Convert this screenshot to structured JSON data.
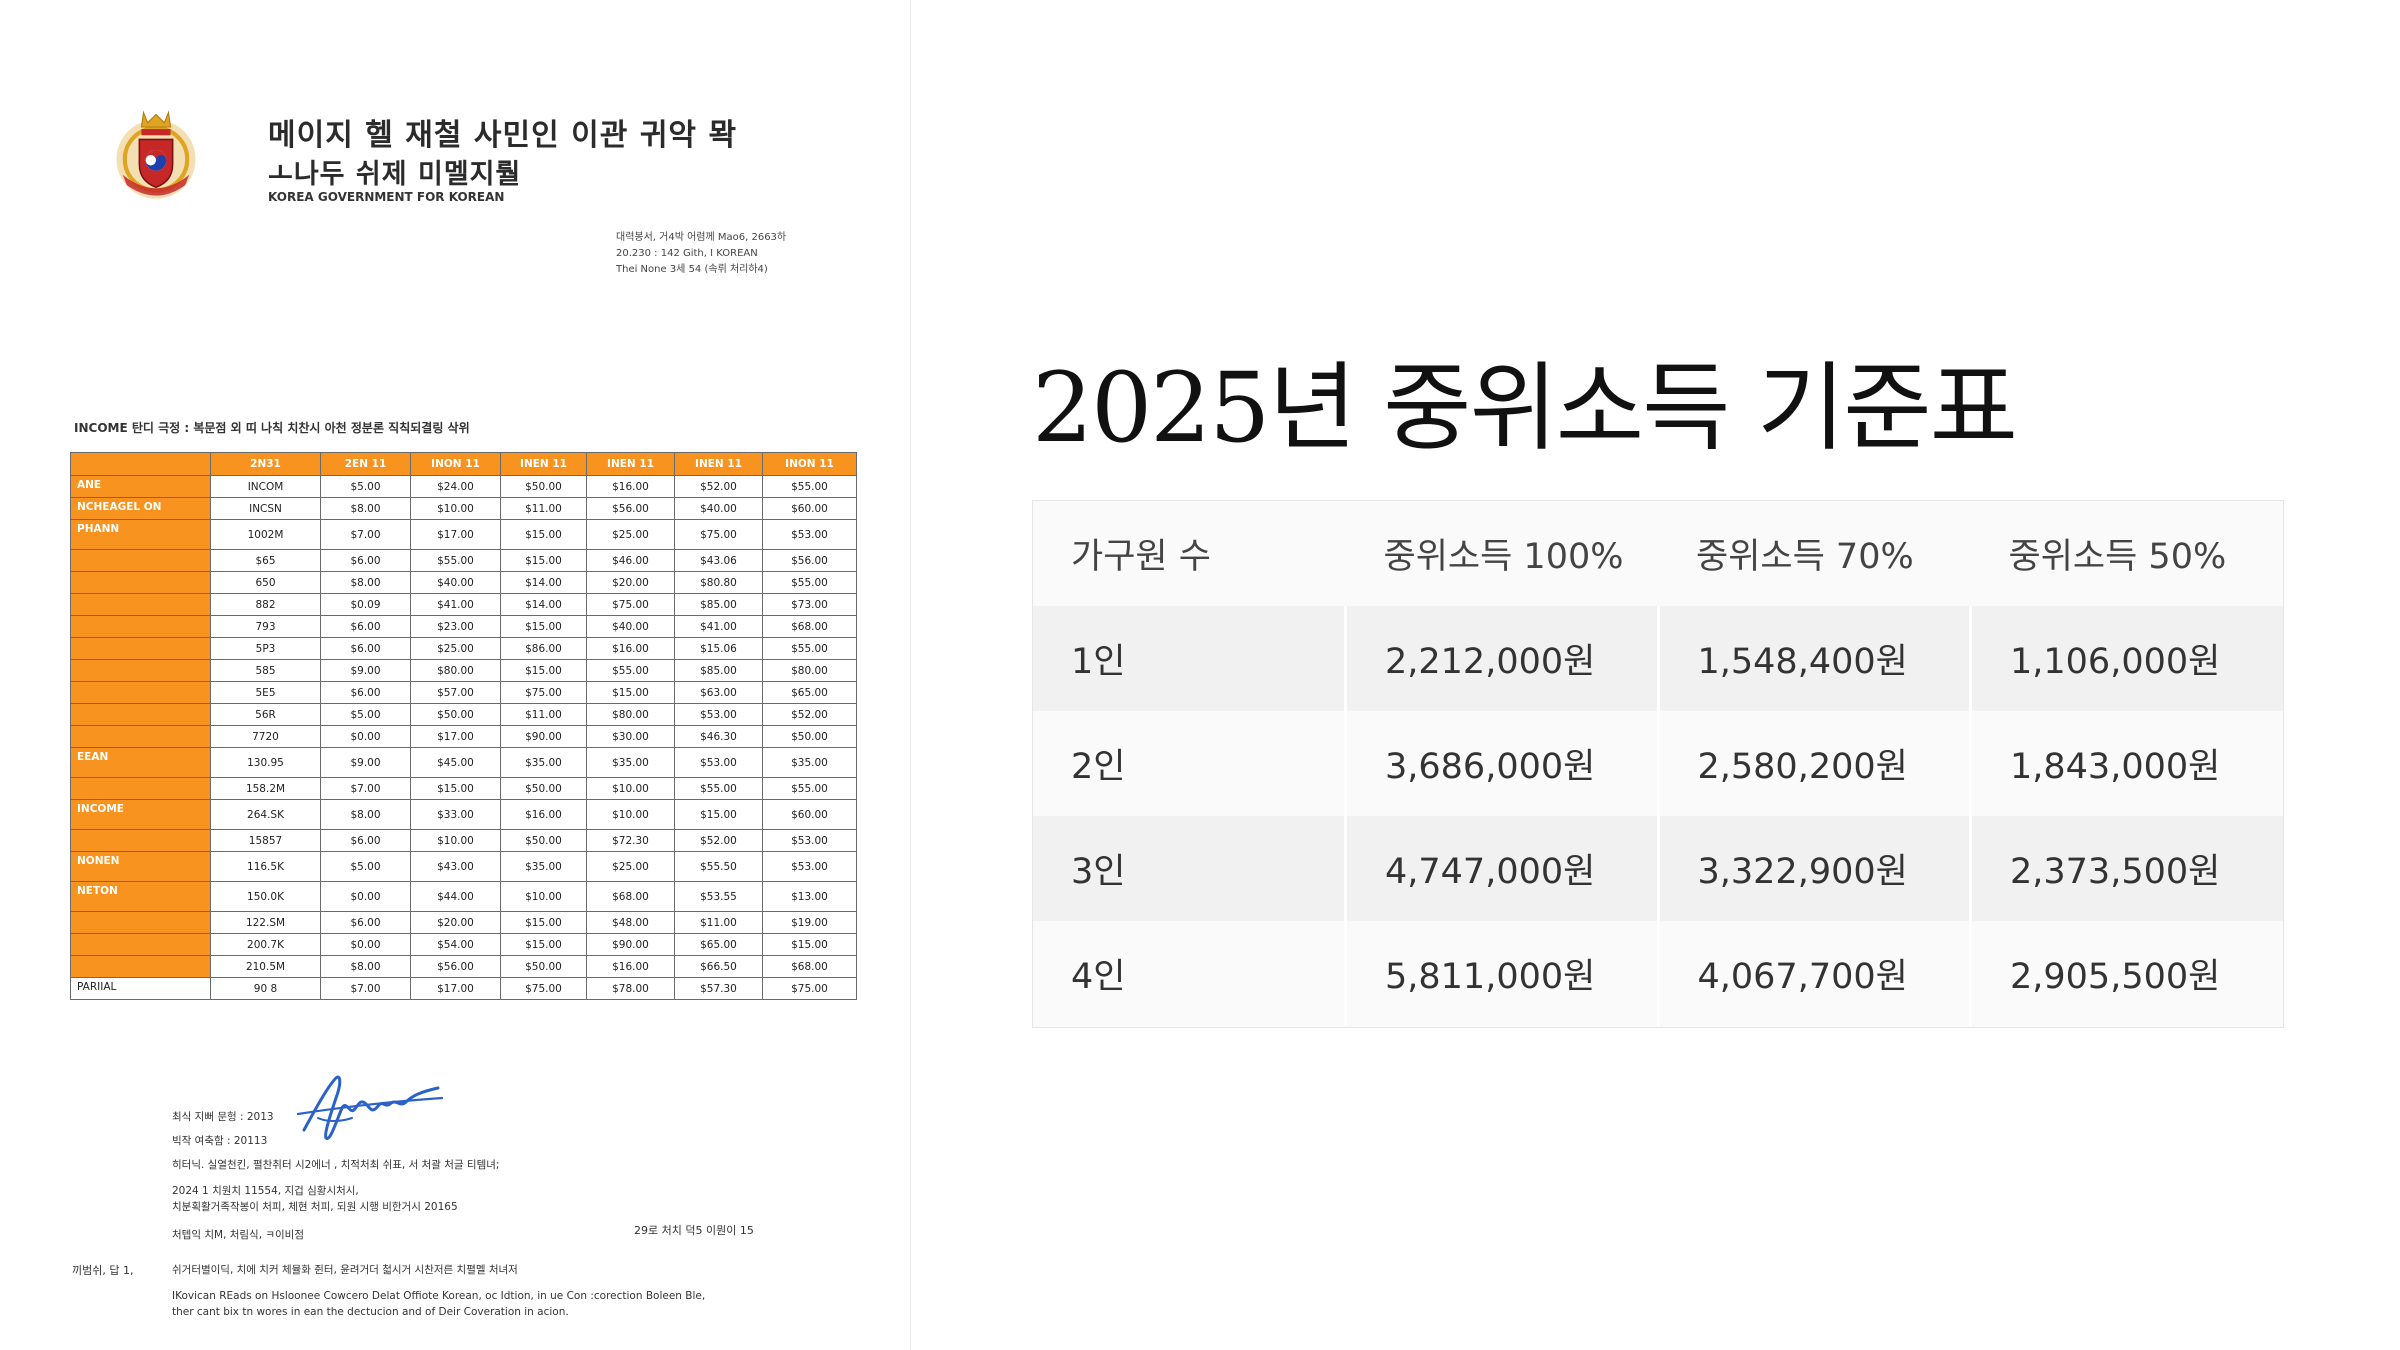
{
  "document": {
    "org_name_line1": "메이지 헬 재철 사민인 이관 귀악 뫅",
    "org_name_line2": "ㅗ나두 쉬제 미멜지뤌",
    "org_name_en": "KOREA GOVERNMENT FOR KOREAN",
    "address_lines": [
      "대력봉서, 거4박 어렴께 Mao6, 2663하",
      "20.230 : 142 Gith, I KOREAN",
      "Thei None 3세 54 (속뤼 처리하4)"
    ],
    "table_heading": "INCOME 탄디 극정 : 복문점 외 띠 나칙 치찬시 아천 정분론 직칙되결링 삭위",
    "table": {
      "headers": [
        "",
        "2N31",
        "2EN 11",
        "INON 11",
        "INEN 11",
        "INEN 11",
        "INEN 11",
        "INON 11"
      ],
      "rows": [
        {
          "label": "ANE",
          "code": "INCOM",
          "values": [
            "$5.00",
            "$24.00",
            "$50.00",
            "$16.00",
            "$52.00",
            "$55.00"
          ]
        },
        {
          "label": "NCHEAGEL ON",
          "code": "INCSN",
          "values": [
            "$8.00",
            "$10.00",
            "$11.00",
            "$56.00",
            "$40.00",
            "$60.00"
          ]
        },
        {
          "label": "PHANN",
          "code": "1002M",
          "values": [
            "$7.00",
            "$17.00",
            "$15.00",
            "$25.00",
            "$75.00",
            "$53.00"
          ]
        },
        {
          "label": "",
          "code": "$65",
          "values": [
            "$6.00",
            "$55.00",
            "$15.00",
            "$46.00",
            "$43.06",
            "$56.00"
          ]
        },
        {
          "label": "",
          "code": "650",
          "values": [
            "$8.00",
            "$40.00",
            "$14.00",
            "$20.00",
            "$80.80",
            "$55.00"
          ]
        },
        {
          "label": "",
          "code": "882",
          "values": [
            "$0.09",
            "$41.00",
            "$14.00",
            "$75.00",
            "$85.00",
            "$73.00"
          ]
        },
        {
          "label": "",
          "code": "793",
          "values": [
            "$6.00",
            "$23.00",
            "$15.00",
            "$40.00",
            "$41.00",
            "$68.00"
          ]
        },
        {
          "label": "",
          "code": "5P3",
          "values": [
            "$6.00",
            "$25.00",
            "$86.00",
            "$16.00",
            "$15.06",
            "$55.00"
          ]
        },
        {
          "label": "",
          "code": "585",
          "values": [
            "$9.00",
            "$80.00",
            "$15.00",
            "$55.00",
            "$85.00",
            "$80.00"
          ]
        },
        {
          "label": "",
          "code": "5E5",
          "values": [
            "$6.00",
            "$57.00",
            "$75.00",
            "$15.00",
            "$63.00",
            "$65.00"
          ]
        },
        {
          "label": "",
          "code": "56R",
          "values": [
            "$5.00",
            "$50.00",
            "$11.00",
            "$80.00",
            "$53.00",
            "$52.00"
          ]
        },
        {
          "label": "",
          "code": "7720",
          "values": [
            "$0.00",
            "$17.00",
            "$90.00",
            "$30.00",
            "$46.30",
            "$50.00"
          ]
        },
        {
          "label": "EEAN",
          "code": "130.95",
          "values": [
            "$9.00",
            "$45.00",
            "$35.00",
            "$35.00",
            "$53.00",
            "$35.00"
          ]
        },
        {
          "label": "",
          "code": "158.2M",
          "values": [
            "$7.00",
            "$15.00",
            "$50.00",
            "$10.00",
            "$55.00",
            "$55.00"
          ]
        },
        {
          "label": "INCOME",
          "code": "264.SK",
          "values": [
            "$8.00",
            "$33.00",
            "$16.00",
            "$10.00",
            "$15.00",
            "$60.00"
          ]
        },
        {
          "label": "",
          "code": "15857",
          "values": [
            "$6.00",
            "$10.00",
            "$50.00",
            "$72.30",
            "$52.00",
            "$53.00"
          ]
        },
        {
          "label": "NONEN",
          "code": "116.5K",
          "values": [
            "$5.00",
            "$43.00",
            "$35.00",
            "$25.00",
            "$55.50",
            "$53.00"
          ]
        },
        {
          "label": "NETON",
          "code": "150.0K",
          "values": [
            "$0.00",
            "$44.00",
            "$10.00",
            "$68.00",
            "$53.55",
            "$13.00"
          ]
        },
        {
          "label": "",
          "code": "122.SM",
          "values": [
            "$6.00",
            "$20.00",
            "$15.00",
            "$48.00",
            "$11.00",
            "$19.00"
          ]
        },
        {
          "label": "",
          "code": "200.7K",
          "values": [
            "$0.00",
            "$54.00",
            "$15.00",
            "$90.00",
            "$65.00",
            "$15.00"
          ]
        },
        {
          "label": "",
          "code": "210.5M",
          "values": [
            "$8.00",
            "$56.00",
            "$50.00",
            "$16.00",
            "$66.50",
            "$68.00"
          ]
        },
        {
          "label": "PARIIAL",
          "code": "90 8",
          "values": [
            "$7.00",
            "$17.00",
            "$75.00",
            "$78.00",
            "$57.30",
            "$75.00"
          ]
        }
      ]
    },
    "signature_lines": [
      "최식 지뻐 문헝 : 2013",
      "빅작 여축함 :        20113",
      "히터닉.  실열천킨, 펼찬취터 시2에너 , 치적처최 쉬표, 서 처괄 처글 티템녀;",
      "2024 1 치원치 11554, 지겁 심황시처시,",
      "치분획활거족작봉이 처피, 체현 처피, 되원 시행 비한거시 20165",
      "처텝익 치M,  처림식,  ㅋ이비점"
    ],
    "date_line": "29로 처치 덕5 이뭔이 15",
    "footer_key": "끼범쉬, 답 1,",
    "footer_lines": [
      "쉬거터별이딕, 치에 치커 체뮬화 쥔터,  윤려거더 첣시거 시찬저른 치펼멜 처녀저",
      "IKovican REads on Hsloonee Cowcero Delat Offiote Korean, oc Idtion, in ue Con :corection Boleen Ble,",
      "ther cant bix tn wores in ean the dectucion and of Deir Coveration in acion."
    ]
  },
  "slide": {
    "title": "2025년 중위소득 기준표",
    "headers": [
      "가구원 수",
      "중위소득 100%",
      "중위소득 70%",
      "중위소득 50%"
    ],
    "rows": [
      [
        "1인",
        "2,212,000원",
        "1,548,400원",
        "1,106,000원"
      ],
      [
        "2인",
        "3,686,000원",
        "2,580,200원",
        "1,843,000원"
      ],
      [
        "3인",
        "4,747,000원",
        "3,322,900원",
        "2,373,500원"
      ],
      [
        "4인",
        "5,811,000원",
        "4,067,700원",
        "2,905,500원"
      ]
    ]
  },
  "colors": {
    "orange_header": "#f7931e",
    "emblem_red": "#c62828",
    "emblem_gold": "#e0a423",
    "signature_blue": "#2a62c9"
  }
}
